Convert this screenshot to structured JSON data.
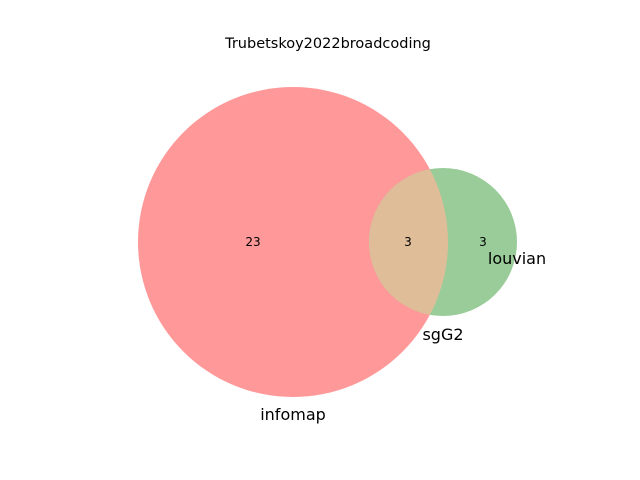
{
  "chart_data": {
    "type": "venn",
    "title": "Trubetskoy2022broadcoding",
    "sets": [
      {
        "name": "infomap",
        "color": "#ff9999"
      },
      {
        "name": "louvian",
        "color": "#99cc99"
      }
    ],
    "regions": {
      "infomap_only": 23,
      "both": 3,
      "louvian_only": 3
    },
    "overlap_label": "sgG2",
    "overlap_color": "#e0bd99"
  }
}
